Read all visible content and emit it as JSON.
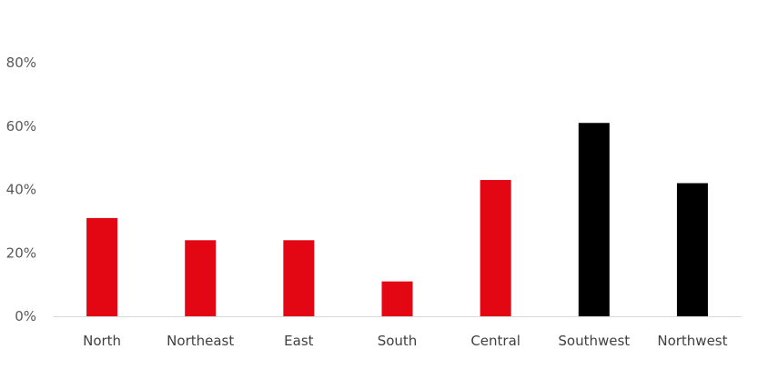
{
  "chart_data": {
    "type": "bar",
    "title": "",
    "xlabel": "",
    "ylabel": "",
    "categories": [
      "North",
      "Northeast",
      "East",
      "South",
      "Central",
      "Southwest",
      "Northwest"
    ],
    "values": [
      0.31,
      0.24,
      0.24,
      0.11,
      0.43,
      0.61,
      0.42
    ],
    "bar_colors": [
      "#e30613",
      "#e30613",
      "#e30613",
      "#e30613",
      "#e30613",
      "#000000",
      "#000000"
    ],
    "ylim": [
      0,
      0.9
    ],
    "yticks": [
      0,
      0.2,
      0.4,
      0.6,
      0.8
    ],
    "ytick_labels": [
      "0%",
      "20%",
      "40%",
      "60%",
      "80%"
    ],
    "grid": false,
    "legend": "none",
    "axis_color": "#d9d9d9"
  }
}
